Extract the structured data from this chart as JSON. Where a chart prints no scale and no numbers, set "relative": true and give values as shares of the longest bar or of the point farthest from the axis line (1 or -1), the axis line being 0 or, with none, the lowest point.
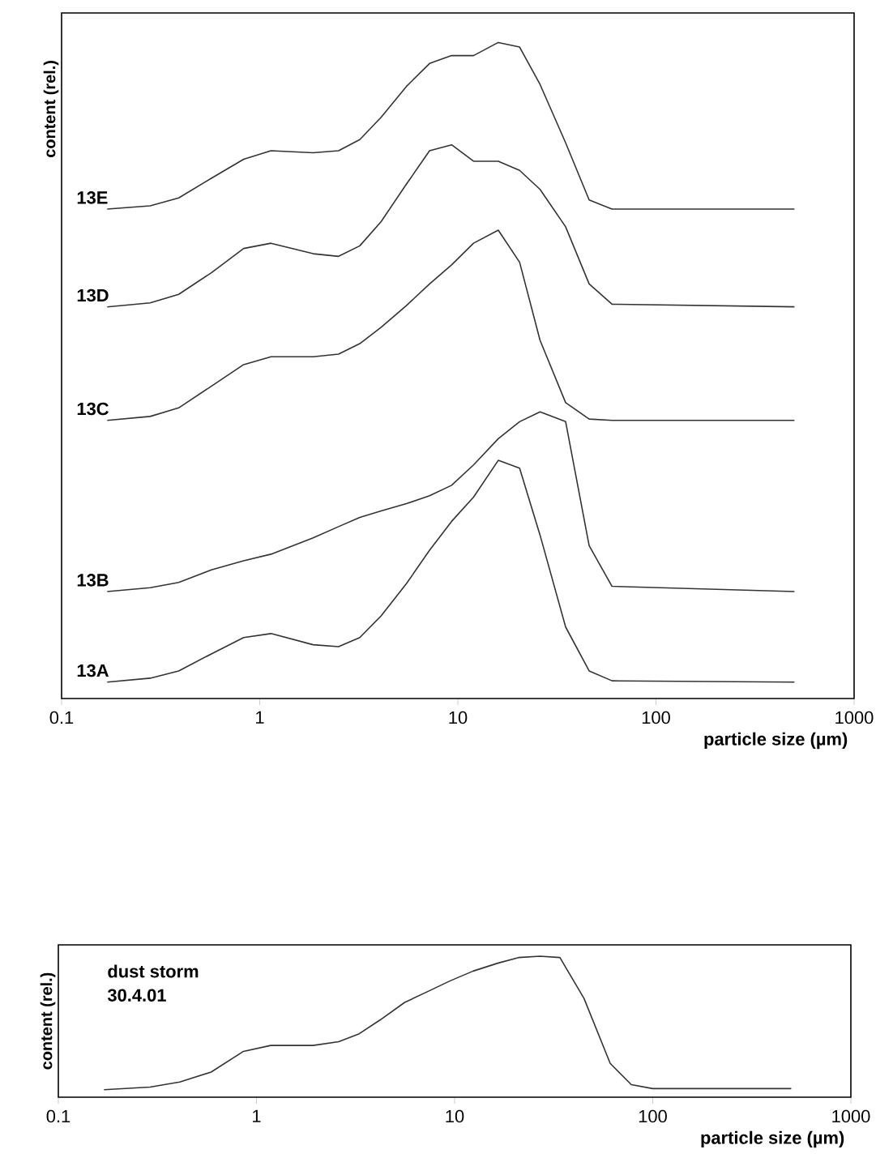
{
  "chart_data": [
    {
      "type": "line",
      "relative": true,
      "log": "x",
      "xlim": [
        0.1,
        1000
      ],
      "xticks": [
        0.1,
        1,
        10,
        100,
        1000
      ],
      "tick_labels": "x",
      "grid": false,
      "legend": false,
      "marker": "none",
      "line_style": "solid",
      "xlabel": "particle size (µm)",
      "ylabel": "content (rel.)",
      "x": [
        0.17,
        0.28,
        0.39,
        0.57,
        0.83,
        1.14,
        1.86,
        2.5,
        3.2,
        4.1,
        5.5,
        7.2,
        9.3,
        12,
        16,
        20.5,
        26,
        35,
        46,
        60,
        500
      ],
      "series": [
        {
          "name": "13E",
          "color": "#333333",
          "values": [
            0.746,
            0.751,
            0.763,
            0.793,
            0.822,
            0.835,
            0.832,
            0.835,
            0.852,
            0.886,
            0.933,
            0.968,
            0.98,
            0.98,
            1.0,
            0.993,
            0.936,
            0.847,
            0.76,
            0.746,
            0.746
          ]
        },
        {
          "name": "13D",
          "color": "#333333",
          "values": [
            0.597,
            0.603,
            0.616,
            0.649,
            0.686,
            0.694,
            0.678,
            0.674,
            0.69,
            0.727,
            0.784,
            0.835,
            0.844,
            0.819,
            0.819,
            0.805,
            0.776,
            0.719,
            0.632,
            0.601,
            0.597
          ]
        },
        {
          "name": "13C",
          "color": "#333333",
          "values": [
            0.424,
            0.43,
            0.443,
            0.476,
            0.509,
            0.521,
            0.521,
            0.525,
            0.541,
            0.566,
            0.599,
            0.632,
            0.661,
            0.694,
            0.714,
            0.665,
            0.546,
            0.451,
            0.426,
            0.424,
            0.424
          ]
        },
        {
          "name": "13B",
          "color": "#333333",
          "values": [
            0.163,
            0.169,
            0.177,
            0.196,
            0.21,
            0.22,
            0.245,
            0.262,
            0.276,
            0.286,
            0.297,
            0.309,
            0.325,
            0.356,
            0.396,
            0.422,
            0.437,
            0.422,
            0.233,
            0.171,
            0.163
          ]
        },
        {
          "name": "13A",
          "color": "#333333",
          "values": [
            0.025,
            0.031,
            0.042,
            0.068,
            0.093,
            0.099,
            0.082,
            0.079,
            0.093,
            0.126,
            0.175,
            0.226,
            0.27,
            0.307,
            0.363,
            0.351,
            0.249,
            0.109,
            0.042,
            0.027,
            0.025
          ]
        }
      ]
    },
    {
      "type": "line",
      "relative": true,
      "log": "x",
      "xlim": [
        0.1,
        1000
      ],
      "xticks": [
        0.1,
        1,
        10,
        100,
        1000
      ],
      "tick_labels": "x",
      "grid": false,
      "legend": false,
      "marker": "none",
      "line_style": "solid",
      "xlabel": "particle size (µm)",
      "ylabel": "content (rel.)",
      "annotations": [
        "dust storm",
        "30.4.01"
      ],
      "x": [
        0.17,
        0.29,
        0.41,
        0.59,
        0.86,
        1.18,
        1.93,
        2.6,
        3.3,
        4.2,
        5.6,
        7.5,
        9.5,
        12.4,
        16.5,
        21,
        27,
        34,
        45,
        61,
        78,
        100,
        500
      ],
      "series": [
        {
          "color": "#333333",
          "values": [
            0.053,
            0.072,
            0.108,
            0.178,
            0.325,
            0.367,
            0.367,
            0.394,
            0.45,
            0.547,
            0.672,
            0.756,
            0.825,
            0.894,
            0.95,
            0.99,
            1.0,
            0.99,
            0.7,
            0.24,
            0.089,
            0.061,
            0.061
          ]
        }
      ]
    }
  ]
}
